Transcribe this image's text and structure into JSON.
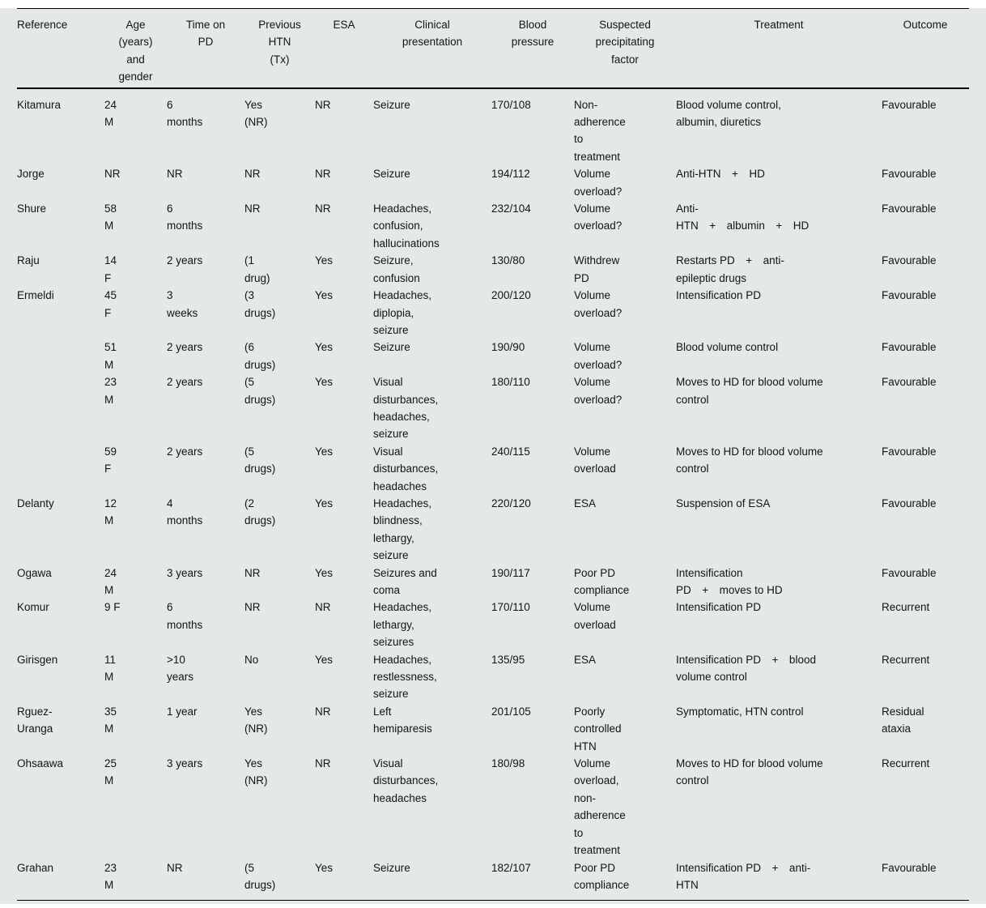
{
  "colors": {
    "table_background": "#e4e8e9",
    "rule": "#000000",
    "text": "#141414"
  },
  "table": {
    "columns": [
      {
        "key": "reference",
        "label": "Reference"
      },
      {
        "key": "age_gender",
        "label": "Age\n(years)\nand\ngender"
      },
      {
        "key": "time_on_pd",
        "label": "Time on\nPD"
      },
      {
        "key": "previous_htn",
        "label": "Previous\nHTN\n(Tx)"
      },
      {
        "key": "esa",
        "label": "ESA"
      },
      {
        "key": "clinical_presentation",
        "label": "Clinical\npresentation"
      },
      {
        "key": "blood_pressure",
        "label": "Blood\npressure"
      },
      {
        "key": "precipitating_factor",
        "label": "Suspected\nprecipitating\nfactor"
      },
      {
        "key": "treatment",
        "label": "Treatment"
      },
      {
        "key": "outcome",
        "label": "Outcome"
      }
    ],
    "rows": [
      {
        "reference": "Kitamura",
        "age_gender": "24\nM",
        "time_on_pd": "6\nmonths",
        "previous_htn": "Yes\n(NR)",
        "esa": "NR",
        "clinical_presentation": "Seizure",
        "blood_pressure": "170/108",
        "precipitating_factor": "Non-\nadherence\nto\ntreatment",
        "treatment": "Blood volume control,\nalbumin, diuretics",
        "outcome": "Favourable"
      },
      {
        "reference": "Jorge",
        "age_gender": "NR",
        "time_on_pd": "NR",
        "previous_htn": "NR",
        "esa": "NR",
        "clinical_presentation": "Seizure",
        "blood_pressure": "194/112",
        "precipitating_factor": "Volume\noverload?",
        "treatment": "Anti-HTN  +  HD",
        "outcome": "Favourable"
      },
      {
        "reference": "Shure",
        "age_gender": "58\nM",
        "time_on_pd": "6\nmonths",
        "previous_htn": "NR",
        "esa": "NR",
        "clinical_presentation": "Headaches,\nconfusion,\nhallucinations",
        "blood_pressure": "232/104",
        "precipitating_factor": "Volume\noverload?",
        "treatment": "Anti-\nHTN  +  albumin  +  HD",
        "outcome": "Favourable"
      },
      {
        "reference": "Raju",
        "age_gender": "14\nF",
        "time_on_pd": "2 years",
        "previous_htn": "(1\ndrug)",
        "esa": "Yes",
        "clinical_presentation": "Seizure,\nconfusion",
        "blood_pressure": "130/80",
        "precipitating_factor": "Withdrew\nPD",
        "treatment": "Restarts PD  +  anti-\nepileptic drugs",
        "outcome": "Favourable"
      },
      {
        "reference": "Ermeldi",
        "age_gender": "45\nF",
        "time_on_pd": "3\nweeks",
        "previous_htn": "(3\ndrugs)",
        "esa": "Yes",
        "clinical_presentation": "Headaches,\ndiplopia,\nseizure",
        "blood_pressure": "200/120",
        "precipitating_factor": "Volume\noverload?",
        "treatment": "Intensification PD",
        "outcome": "Favourable"
      },
      {
        "reference": "",
        "age_gender": "51\nM",
        "time_on_pd": "2 years",
        "previous_htn": "(6\ndrugs)",
        "esa": "Yes",
        "clinical_presentation": "Seizure",
        "blood_pressure": "190/90",
        "precipitating_factor": "Volume\noverload?",
        "treatment": "Blood volume control",
        "outcome": "Favourable"
      },
      {
        "reference": "",
        "age_gender": "23\nM",
        "time_on_pd": "2 years",
        "previous_htn": "(5\ndrugs)",
        "esa": "Yes",
        "clinical_presentation": "Visual\ndisturbances,\nheadaches,\nseizure",
        "blood_pressure": "180/110",
        "precipitating_factor": "Volume\noverload?",
        "treatment": "Moves to HD for blood volume\ncontrol",
        "outcome": "Favourable"
      },
      {
        "reference": "",
        "age_gender": "59\nF",
        "time_on_pd": "2 years",
        "previous_htn": "(5\ndrugs)",
        "esa": "Yes",
        "clinical_presentation": "Visual\ndisturbances,\nheadaches",
        "blood_pressure": "240/115",
        "precipitating_factor": "Volume\noverload",
        "treatment": "Moves to HD for blood volume\ncontrol",
        "outcome": "Favourable"
      },
      {
        "reference": "Delanty",
        "age_gender": "12\nM",
        "time_on_pd": "4\nmonths",
        "previous_htn": "(2\ndrugs)",
        "esa": "Yes",
        "clinical_presentation": "Headaches,\nblindness,\nlethargy,\nseizure",
        "blood_pressure": "220/120",
        "precipitating_factor": "ESA",
        "treatment": "Suspension of ESA",
        "outcome": "Favourable"
      },
      {
        "reference": "Ogawa",
        "age_gender": "24\nM",
        "time_on_pd": "3 years",
        "previous_htn": "NR",
        "esa": "Yes",
        "clinical_presentation": "Seizures and\ncoma",
        "blood_pressure": "190/117",
        "precipitating_factor": "Poor PD\ncompliance",
        "treatment": "Intensification\nPD  +  moves to HD",
        "outcome": "Favourable"
      },
      {
        "reference": "Komur",
        "age_gender": "9 F",
        "time_on_pd": "6\nmonths",
        "previous_htn": "NR",
        "esa": "NR",
        "clinical_presentation": "Headaches,\nlethargy,\nseizures",
        "blood_pressure": "170/110",
        "precipitating_factor": "Volume\noverload",
        "treatment": "Intensification PD",
        "outcome": "Recurrent"
      },
      {
        "reference": "Girisgen",
        "age_gender": "11\nM",
        "time_on_pd": ">10\nyears",
        "previous_htn": "No",
        "esa": "Yes",
        "clinical_presentation": "Headaches,\nrestlessness,\nseizure",
        "blood_pressure": "135/95",
        "precipitating_factor": "ESA",
        "treatment": "Intensification PD  +  blood\nvolume control",
        "outcome": "Recurrent"
      },
      {
        "reference": "Rguez-\nUranga",
        "age_gender": "35\nM",
        "time_on_pd": "1 year",
        "previous_htn": "Yes\n(NR)",
        "esa": "NR",
        "clinical_presentation": "Left\nhemiparesis",
        "blood_pressure": "201/105",
        "precipitating_factor": "Poorly\ncontrolled\nHTN",
        "treatment": "Symptomatic, HTN control",
        "outcome": "Residual\nataxia"
      },
      {
        "reference": "Ohsaawa",
        "age_gender": "25\nM",
        "time_on_pd": "3 years",
        "previous_htn": "Yes\n(NR)",
        "esa": "NR",
        "clinical_presentation": "Visual\ndisturbances,\nheadaches",
        "blood_pressure": "180/98",
        "precipitating_factor": "Volume\noverload,\nnon-\nadherence\nto\ntreatment",
        "treatment": "Moves to HD for blood volume\ncontrol",
        "outcome": "Recurrent"
      },
      {
        "reference": "Grahan",
        "age_gender": "23\nM",
        "time_on_pd": "NR",
        "previous_htn": "(5\ndrugs)",
        "esa": "Yes",
        "clinical_presentation": "Seizure",
        "blood_pressure": "182/107",
        "precipitating_factor": "Poor PD\ncompliance",
        "treatment": "Intensification PD  +  anti-\nHTN",
        "outcome": "Favourable"
      }
    ]
  }
}
